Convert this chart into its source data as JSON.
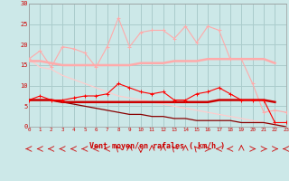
{
  "x": [
    0,
    1,
    2,
    3,
    4,
    5,
    6,
    7,
    8,
    9,
    10,
    11,
    12,
    13,
    14,
    15,
    16,
    17,
    18,
    19,
    20,
    21,
    22,
    23
  ],
  "line1": [
    16.5,
    18.5,
    14.5,
    19.5,
    19.0,
    18.0,
    14.5,
    19.5,
    26.5,
    19.5,
    23.0,
    23.5,
    23.5,
    21.5,
    24.5,
    20.5,
    24.5,
    23.5,
    16.5,
    16.5,
    10.5,
    3.5,
    4.0,
    3.5
  ],
  "line2": [
    16.0,
    16.0,
    15.5,
    15.0,
    15.0,
    15.0,
    15.0,
    15.0,
    15.0,
    15.0,
    15.5,
    15.5,
    15.5,
    16.0,
    16.0,
    16.0,
    16.5,
    16.5,
    16.5,
    16.5,
    16.5,
    16.5,
    15.5,
    null
  ],
  "line3": [
    16.5,
    14.5,
    14.0,
    12.5,
    11.5,
    10.5,
    9.5,
    8.5,
    7.5,
    7.0,
    6.5,
    6.0,
    5.5,
    5.0,
    4.5,
    4.0,
    3.5,
    3.0,
    2.5,
    2.0,
    1.5,
    1.0,
    0.5,
    0.0
  ],
  "line4": [
    6.5,
    7.5,
    6.5,
    6.5,
    7.0,
    7.5,
    7.5,
    8.0,
    10.5,
    9.5,
    8.5,
    8.0,
    8.5,
    6.5,
    6.5,
    8.0,
    8.5,
    9.5,
    8.0,
    6.5,
    6.5,
    6.5,
    1.0,
    1.0
  ],
  "line5": [
    6.5,
    6.5,
    6.5,
    6.0,
    6.0,
    6.0,
    6.0,
    6.0,
    6.0,
    6.0,
    6.0,
    6.0,
    6.0,
    6.0,
    6.0,
    6.0,
    6.0,
    6.5,
    6.5,
    6.5,
    6.5,
    6.5,
    6.0,
    null
  ],
  "line6": [
    6.5,
    6.5,
    6.5,
    6.0,
    5.5,
    5.0,
    4.5,
    4.0,
    3.5,
    3.0,
    3.0,
    2.5,
    2.5,
    2.0,
    2.0,
    1.5,
    1.5,
    1.5,
    1.5,
    1.0,
    1.0,
    1.0,
    0.5,
    0.0
  ],
  "bg_color": "#cce8e8",
  "grid_color": "#aacccc",
  "xlabel": "Vent moyen/en rafales ( km/h )",
  "ylim": [
    0,
    30
  ],
  "xlim": [
    0,
    23
  ],
  "yticks": [
    0,
    5,
    10,
    15,
    20,
    25,
    30
  ],
  "xticks": [
    0,
    1,
    2,
    3,
    4,
    5,
    6,
    7,
    8,
    9,
    10,
    11,
    12,
    13,
    14,
    15,
    16,
    17,
    18,
    19,
    20,
    21,
    22,
    23
  ],
  "arrow_angles": [
    270,
    270,
    270,
    270,
    270,
    270,
    270,
    270,
    315,
    0,
    180,
    0,
    0,
    315,
    0,
    315,
    90,
    270,
    270,
    0,
    90,
    90,
    90,
    270
  ]
}
